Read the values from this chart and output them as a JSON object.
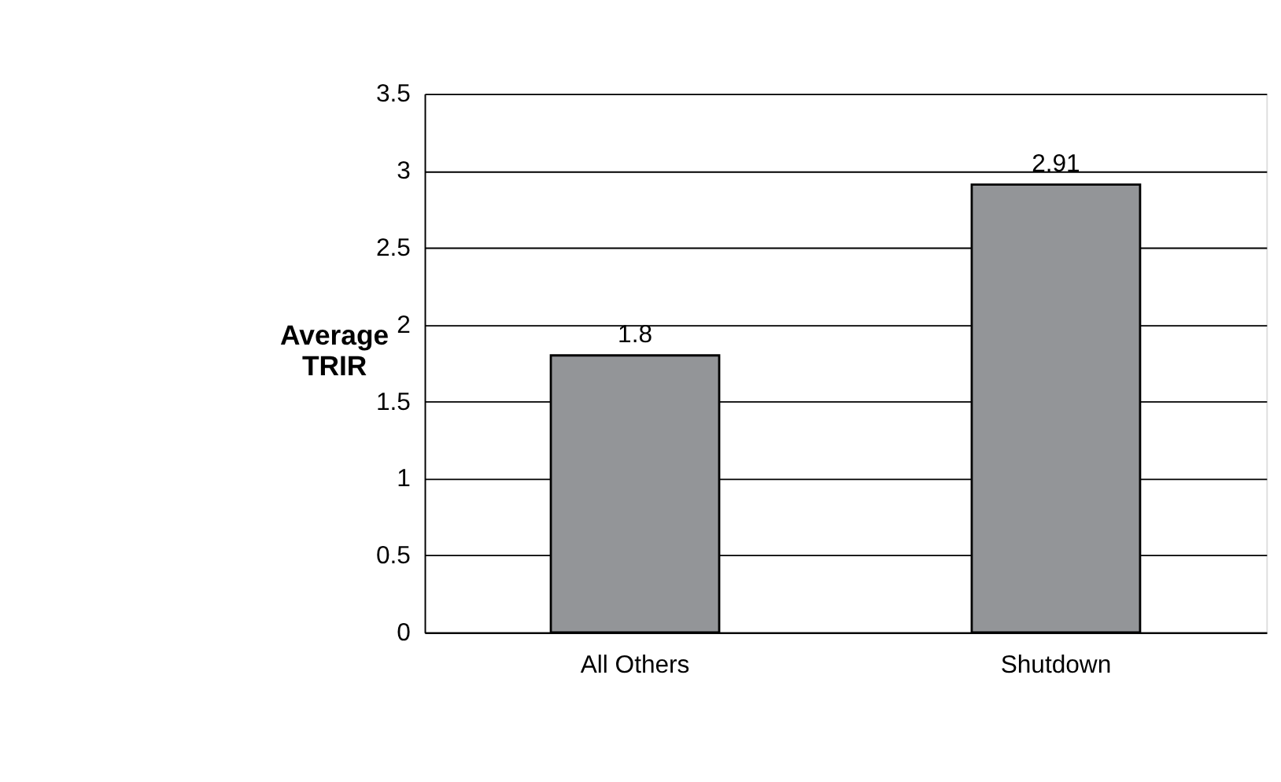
{
  "chart_data": {
    "type": "bar",
    "ylabel": "Average\nTRIR",
    "categories": [
      "All Others",
      "Shutdown"
    ],
    "values": [
      1.8,
      2.91
    ],
    "color": "#939598",
    "ylim": [
      0,
      3.5
    ],
    "yticks": [
      0,
      0.5,
      1,
      1.5,
      2,
      2.5,
      3,
      3.5
    ],
    "grid": "y",
    "data_labels": true
  }
}
